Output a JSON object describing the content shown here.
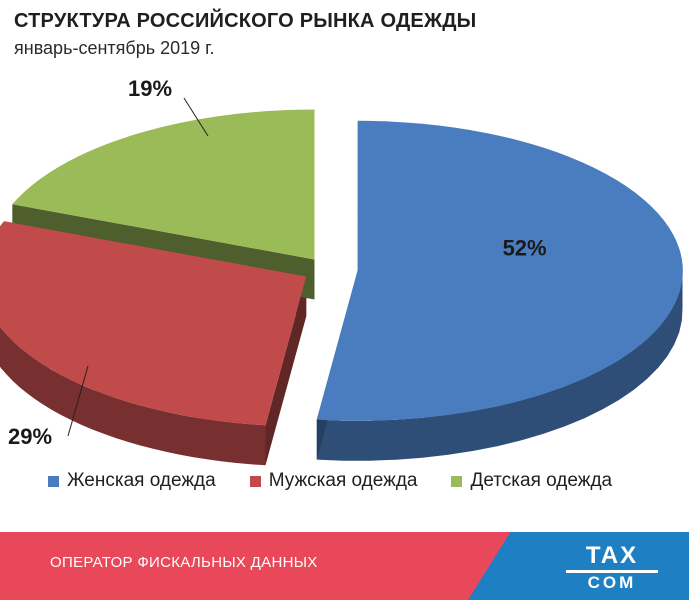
{
  "title": "СТРУКТУРА РОССИЙСКОГО РЫНКА ОДЕЖДЫ",
  "subtitle": "январь-сентябрь 2019 г.",
  "chart_data": {
    "type": "pie",
    "title": "СТРУКТУРА РОССИЙСКОГО РЫНКА ОДЕЖДЫ",
    "subtitle": "январь-сентябрь 2019 г.",
    "categories": [
      "Женская одежда",
      "Мужская одежда",
      "Детская одежда"
    ],
    "values": [
      52,
      29,
      19
    ],
    "labels": [
      "52%",
      "29%",
      "19%"
    ],
    "colors": [
      "#4a7dc0",
      "#c14b4b",
      "#9bbb59"
    ],
    "legend_position": "bottom",
    "exploded": true,
    "three_d": true
  },
  "legend": [
    {
      "label": "Женская одежда",
      "color": "#4a7dc0"
    },
    {
      "label": "Мужская одежда",
      "color": "#c14b4b"
    },
    {
      "label": "Детская одежда",
      "color": "#9bbb59"
    }
  ],
  "footer": {
    "text": "ОПЕРАТОР ФИСКАЛЬНЫХ ДАННЫХ",
    "logo_top": "TAX",
    "logo_bottom": "COM"
  }
}
